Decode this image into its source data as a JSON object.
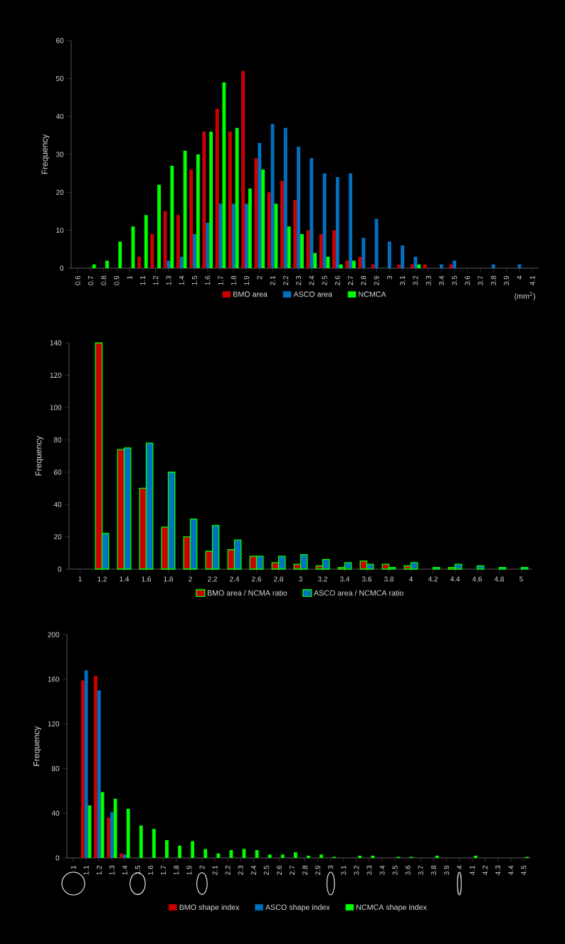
{
  "chart_data": [
    {
      "type": "bar",
      "categories": [
        "0.6",
        "0.7",
        "0.8",
        "0.9",
        "1",
        "1.1",
        "1.2",
        "1.3",
        "1.4",
        "1.5",
        "1.6",
        "1.7",
        "1.8",
        "1.9",
        "2",
        "2.1",
        "2.2",
        "2.3",
        "2.4",
        "2.5",
        "2.6",
        "2.7",
        "2.8",
        "2.9",
        "3",
        "3.1",
        "3.2",
        "3.3",
        "3.4",
        "3.5",
        "3.6",
        "3.7",
        "3.8",
        "3.9",
        "4",
        "4.1"
      ],
      "series": [
        {
          "name": "BMO area",
          "color": "#cc0000",
          "values": [
            0,
            0,
            0,
            0,
            0,
            3,
            9,
            15,
            14,
            26,
            36,
            42,
            36,
            52,
            29,
            20,
            23,
            18,
            10,
            9,
            10,
            2,
            3,
            1,
            0,
            1,
            1,
            1,
            0,
            1,
            0,
            0,
            0,
            0,
            0,
            0
          ]
        },
        {
          "name": "ASCO area",
          "color": "#0070c0",
          "values": [
            0,
            0,
            0,
            0,
            0,
            0,
            0,
            2,
            3,
            9,
            12,
            17,
            17,
            17,
            33,
            38,
            37,
            32,
            29,
            25,
            24,
            25,
            8,
            13,
            7,
            6,
            3,
            0,
            1,
            2,
            0,
            0,
            1,
            0,
            1,
            0
          ]
        },
        {
          "name": "NCMCA",
          "color": "#00ff00",
          "values": [
            0,
            1,
            2,
            7,
            11,
            14,
            22,
            27,
            31,
            30,
            36,
            49,
            37,
            21,
            26,
            17,
            11,
            9,
            4,
            3,
            1,
            2,
            0,
            0,
            0,
            0,
            1,
            0,
            0,
            0,
            0,
            0,
            0,
            0,
            0,
            0
          ]
        }
      ],
      "ylabel": "Frequency",
      "ylim": [
        0,
        60
      ],
      "yticks": [
        0,
        10,
        20,
        30,
        40,
        50,
        60
      ],
      "legend": "bottom",
      "annotations": [
        "(mm$^{2}$)"
      ]
    },
    {
      "type": "bar",
      "categories": [
        "1",
        "1.2",
        "1.4",
        "1.6",
        "1.8",
        "2",
        "2.2",
        "2.4",
        "2.6",
        "2.8",
        "3",
        "3.2",
        "3.4",
        "3.6",
        "3.8",
        "4",
        "4.2",
        "4.4",
        "4.6",
        "4.8",
        "5"
      ],
      "series": [
        {
          "name": "BMO area / NCMA ratio",
          "color": "#cc0000",
          "values": [
            0,
            140,
            74,
            50,
            26,
            20,
            11,
            12,
            8,
            4,
            3,
            2,
            1,
            5,
            3,
            2,
            0,
            1,
            0,
            0,
            0
          ]
        },
        {
          "name": "ASCO area / NCMCA ratio",
          "color": "#0070c0",
          "values": [
            0,
            22,
            75,
            78,
            60,
            31,
            27,
            18,
            8,
            8,
            9,
            6,
            4,
            3,
            1,
            4,
            1,
            3,
            2,
            1,
            1
          ]
        }
      ],
      "ylabel": "Frequency",
      "ylim": [
        0,
        140
      ],
      "yticks": [
        0,
        20,
        40,
        60,
        80,
        100,
        120,
        140
      ],
      "legend": "bottom"
    },
    {
      "type": "bar",
      "categories": [
        "1",
        "1.1",
        "1.2",
        "1.3",
        "1.4",
        "1.5",
        "1.6",
        "1.7",
        "1.8",
        "1.9",
        "2",
        "2.1",
        "2.2",
        "2.3",
        "2.4",
        "2.5",
        "2.6",
        "2.7",
        "2.8",
        "2.9",
        "3",
        "3.1",
        "3.2",
        "3.3",
        "3.4",
        "3.5",
        "3.6",
        "3.7",
        "3.8",
        "3.9",
        "4",
        "4.1",
        "4.2",
        "4.3",
        "4.4",
        "4.5"
      ],
      "series": [
        {
          "name": "BMO shape index",
          "color": "#cc0000",
          "values": [
            0,
            159,
            163,
            36,
            4,
            0,
            0,
            0,
            0,
            0,
            0,
            0,
            0,
            0,
            0,
            0,
            0,
            0,
            0,
            0,
            0,
            0,
            0,
            0,
            0,
            0,
            0,
            0,
            0,
            0,
            0,
            0,
            0,
            0,
            0,
            0
          ]
        },
        {
          "name": "ASCO shape index",
          "color": "#0070c0",
          "values": [
            0,
            168,
            150,
            41,
            3,
            0,
            0,
            0,
            0,
            0,
            0,
            0,
            0,
            0,
            0,
            0,
            0,
            0,
            0,
            0,
            0,
            0,
            0,
            0,
            0,
            0,
            0,
            0,
            0,
            0,
            0,
            0,
            0,
            0,
            0,
            0
          ]
        },
        {
          "name": "NCMCA shape index",
          "color": "#00ff00",
          "values": [
            0,
            47,
            59,
            53,
            44,
            29,
            26,
            16,
            11,
            15,
            8,
            4,
            7,
            8,
            7,
            3,
            3,
            5,
            2,
            3,
            1,
            0,
            2,
            2,
            0,
            1,
            1,
            0,
            2,
            0,
            0,
            2,
            0,
            0,
            0,
            1
          ]
        }
      ],
      "ylabel": "Frequency",
      "ylim": [
        0,
        200
      ],
      "yticks": [
        0,
        40,
        80,
        120,
        160,
        200
      ],
      "legend": "bottom"
    }
  ]
}
